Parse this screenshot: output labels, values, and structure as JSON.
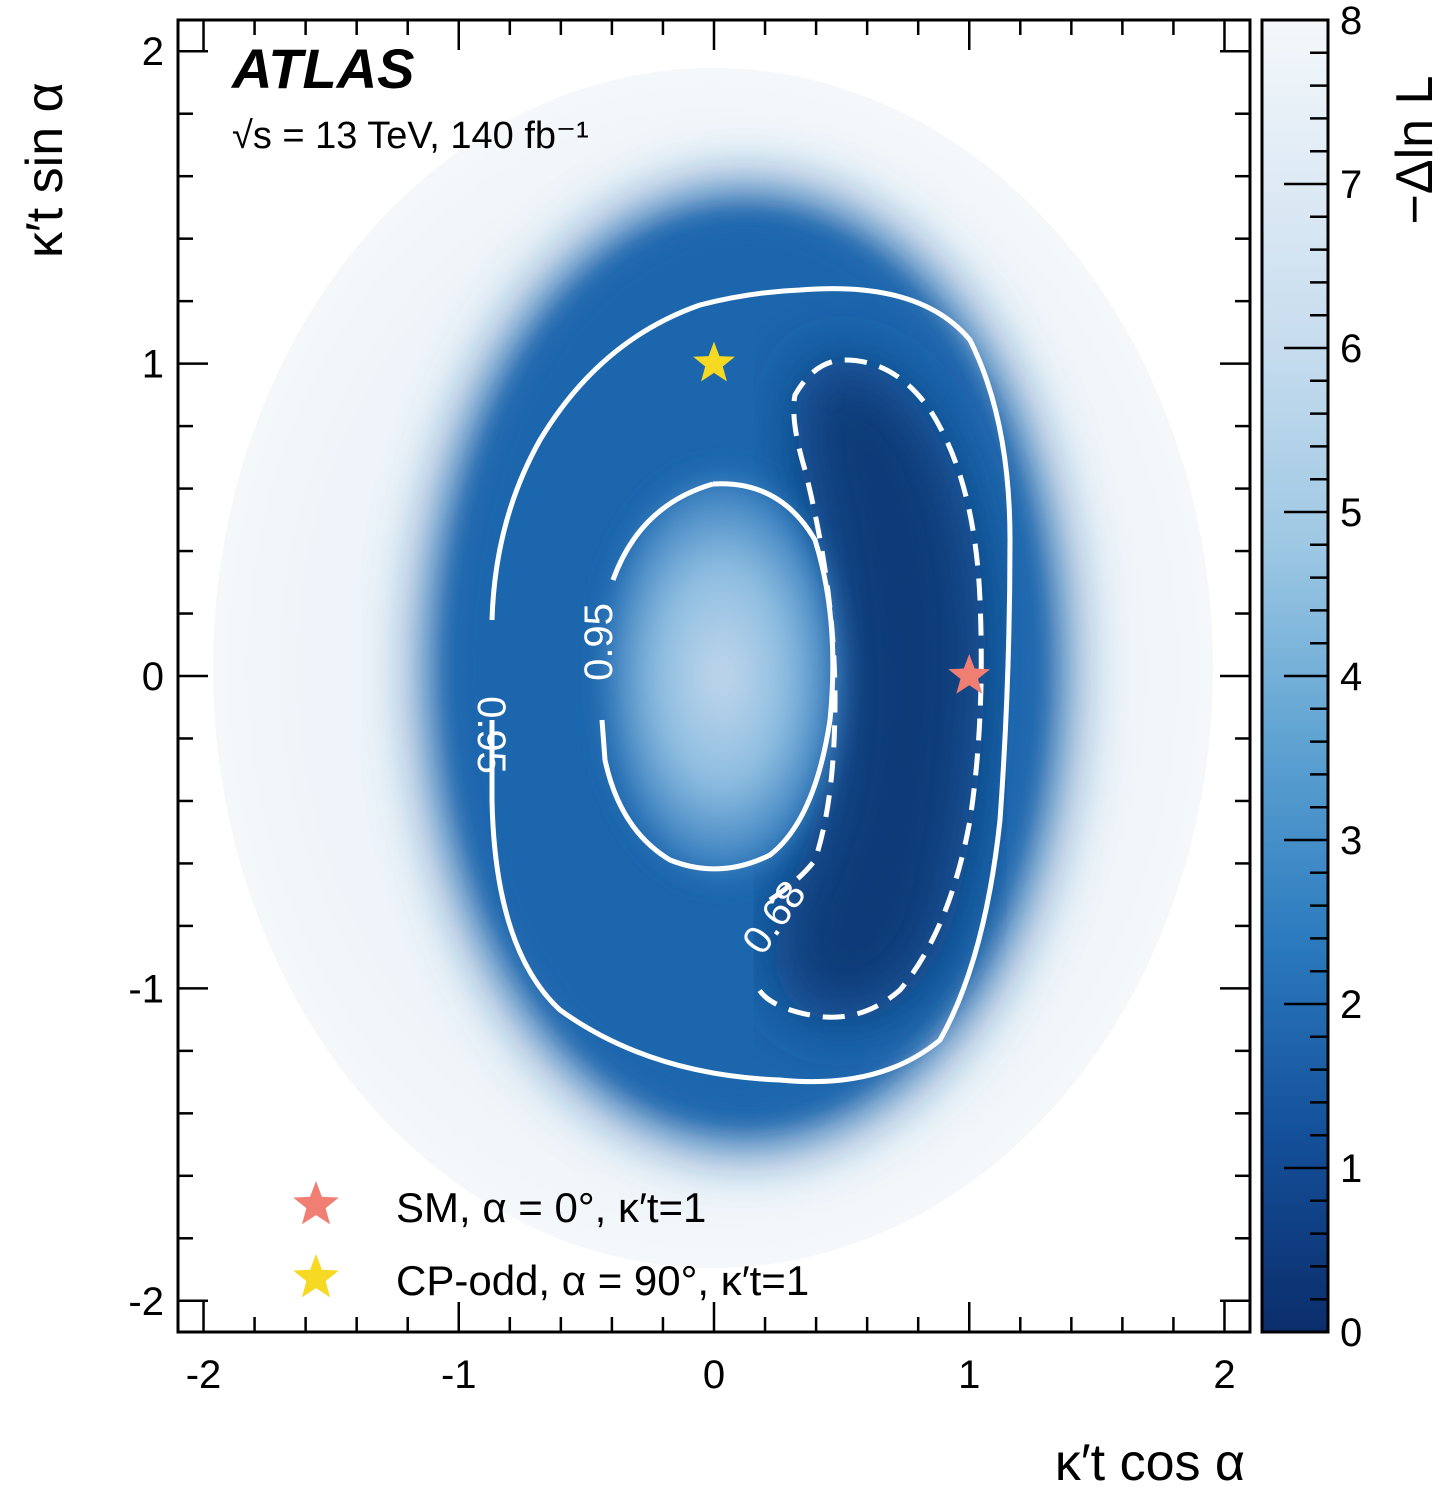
{
  "chart_data": {
    "type": "heatmap",
    "xlabel": "κ′t cos α",
    "ylabel": "κ′t sin α",
    "xlim": [
      -2.1,
      2.1
    ],
    "ylim": [
      -2.1,
      2.1
    ],
    "x_ticks": [
      "-2",
      "-1",
      "0",
      "1",
      "2"
    ],
    "y_ticks": [
      "-2",
      "-1",
      "0",
      "1",
      "2"
    ],
    "experiment_label": "ATLAS",
    "energy_label": "√s = 13 TeV, 140 fb⁻¹",
    "colorbar": {
      "label": "−Δln L",
      "range": [
        0,
        8
      ],
      "ticks": [
        "0",
        "1",
        "2",
        "3",
        "4",
        "5",
        "6",
        "7",
        "8"
      ],
      "color_low": "#0b2d6b",
      "color_high": "#f4f8fb"
    },
    "contours": [
      {
        "label": "0.68",
        "style": "dashed",
        "color": "#ffffff"
      },
      {
        "label": "0.95",
        "style": "solid",
        "color": "#ffffff"
      }
    ],
    "markers": [
      {
        "x": 1,
        "y": 0,
        "symbol": "star",
        "color": "#f07e72"
      },
      {
        "x": 0,
        "y": 1,
        "symbol": "star",
        "color": "#f5d922"
      }
    ],
    "legend": {
      "placement": "bottom-left",
      "entries": [
        {
          "symbol": "star",
          "color": "#f07e72",
          "label": "SM, α = 0°, κ′t=1"
        },
        {
          "symbol": "star",
          "color": "#f5d922",
          "label": "CP-odd, α = 90°, κ′t=1"
        }
      ]
    }
  }
}
